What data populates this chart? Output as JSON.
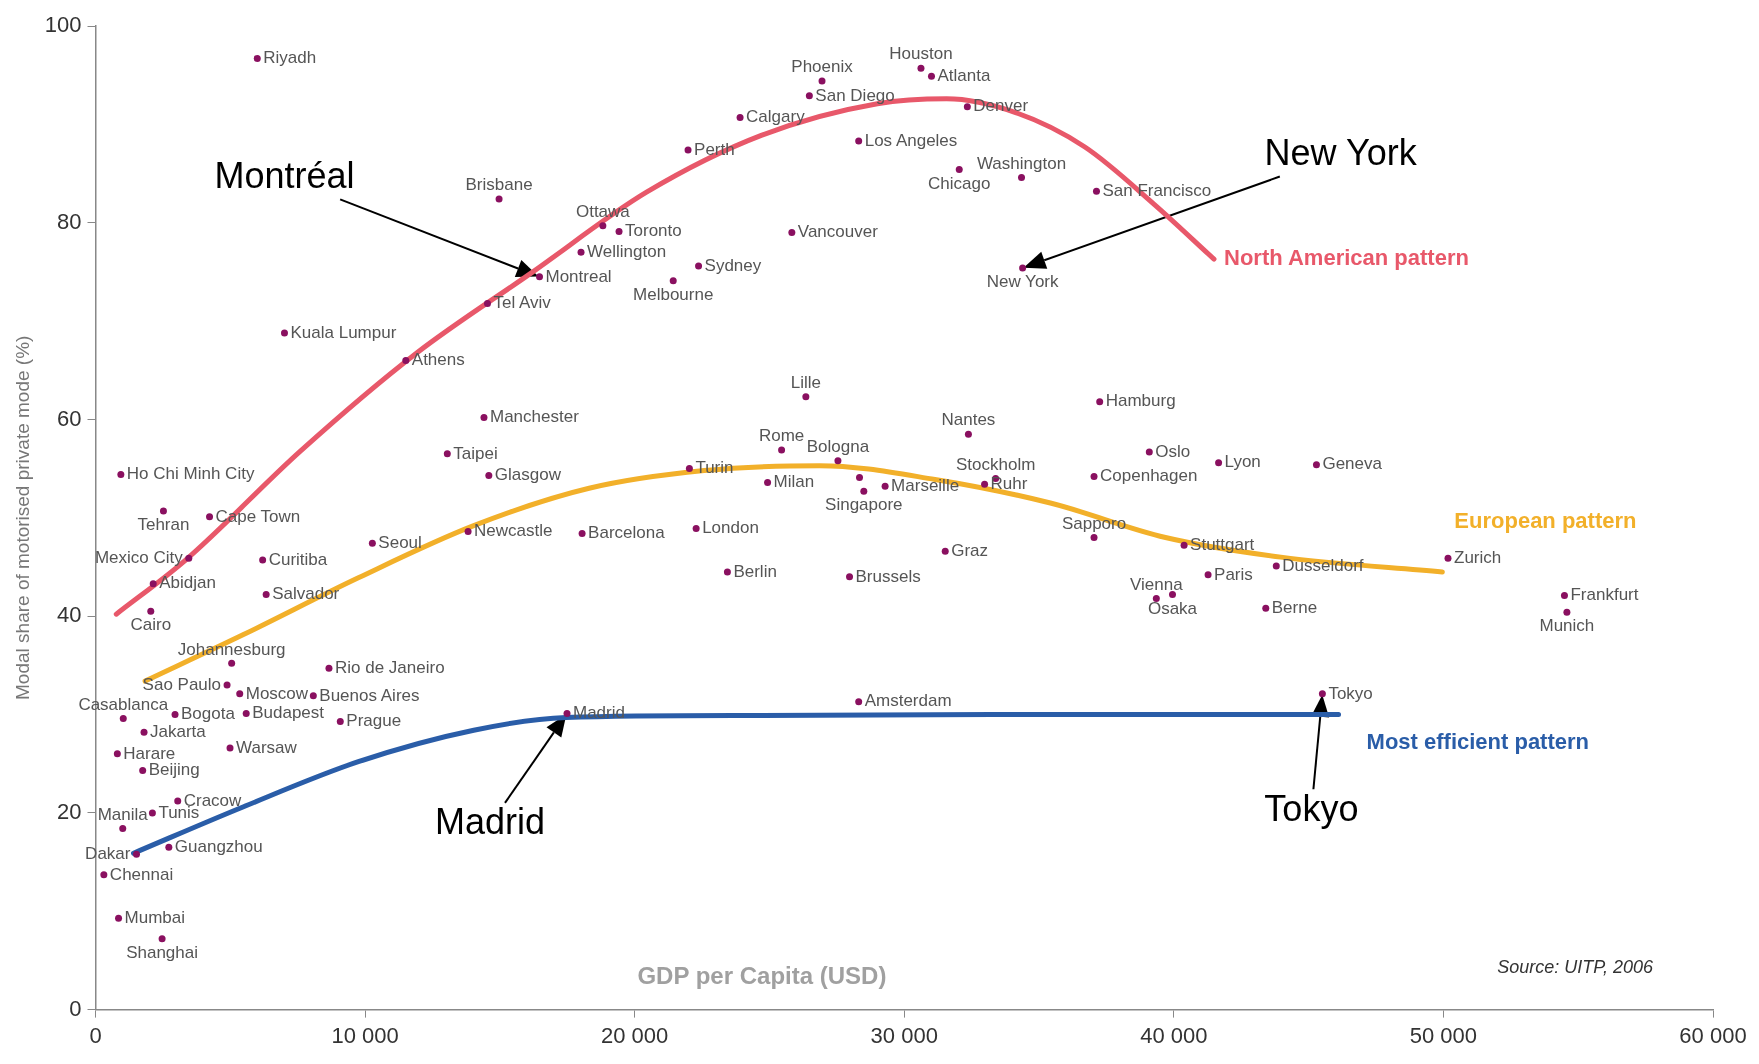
{
  "chart_data": {
    "type": "scatter",
    "xlabel": "GDP per Capita (USD)",
    "ylabel": "Modal share of motorised private mode (%)",
    "xlim": [
      0,
      60000
    ],
    "xticks": [
      0,
      {
        "value": 10000,
        "label": "10 000"
      },
      {
        "value": 20000,
        "label": "20 000"
      },
      {
        "value": 30000,
        "label": "30 000"
      },
      {
        "value": 40000,
        "label": "40 000"
      },
      {
        "value": 50000,
        "label": "50 000"
      },
      {
        "value": 60000,
        "label": "60 000"
      }
    ],
    "ylim": [
      0,
      100
    ],
    "yticks": [
      0,
      20,
      40,
      60,
      80,
      100
    ],
    "marker": "circle",
    "series": [
      {
        "type": "scatter",
        "color": "#8a1060",
        "x": [
          6000,
          26950,
          30620,
          31010,
          26480,
          32340,
          23910,
          21980,
          28310,
          32040,
          34350,
          37130,
          14970,
          18820,
          19420,
          18010,
          25830,
          22370,
          21430,
          16470,
          34390,
          14540,
          7010,
          11510,
          26350,
          37250,
          32380,
          14410,
          25450,
          39090,
          27540,
          41660,
          45290,
          13050,
          940,
          14590,
          22030,
          33390,
          37040,
          24930,
          29290,
          28500,
          32980,
          2520,
          4230,
          37040,
          13820,
          18050,
          22280,
          10270,
          40380,
          3460,
          6200,
          31520,
          50170,
          43800,
          23440,
          27970,
          2140,
          41270,
          6330,
          39350,
          39950,
          54490,
          54580,
          43410,
          2050,
          5050,
          8660,
          4880,
          5350,
          8080,
          1030,
          2950,
          5590,
          9080,
          1800,
          17490,
          28310,
          45510,
          810,
          4990,
          1750,
          1010,
          3050,
          2110,
          1520,
          2720,
          310,
          855,
          2470,
          28340
        ],
        "values": [
          96.7,
          94.4,
          95.7,
          94.9,
          92.9,
          91.8,
          90.7,
          87.4,
          88.3,
          85.4,
          84.6,
          83.2,
          82.4,
          79.7,
          79.1,
          77.0,
          79.0,
          75.6,
          74.1,
          74.5,
          75.4,
          71.8,
          68.8,
          66.0,
          62.3,
          61.8,
          58.5,
          60.2,
          56.9,
          56.7,
          55.8,
          55.6,
          55.4,
          56.5,
          54.4,
          54.3,
          55.0,
          54.0,
          54.2,
          53.6,
          53.2,
          52.7,
          53.4,
          50.7,
          50.1,
          48.0,
          48.6,
          48.4,
          48.9,
          47.4,
          47.2,
          45.9,
          45.7,
          46.6,
          45.9,
          45.1,
          44.5,
          44.0,
          43.3,
          44.2,
          42.2,
          41.8,
          42.2,
          42.1,
          40.4,
          40.8,
          40.5,
          35.2,
          34.7,
          33.0,
          32.1,
          31.9,
          29.6,
          30.0,
          30.1,
          29.3,
          28.2,
          30.1,
          31.3,
          32.1,
          26.0,
          26.6,
          24.3,
          18.4,
          21.2,
          20.0,
          15.8,
          16.5,
          13.7,
          9.3,
          7.2,
          54.1
        ]
      },
      {
        "type": "line",
        "marker": "none",
        "name": "North American pattern",
        "color": "#e8586a",
        "x": [
          770,
          3340,
          7610,
          11890,
          16170,
          20440,
          24720,
          29000,
          31570,
          34130,
          36700,
          39260,
          41490
        ],
        "values": [
          40.2,
          45.7,
          56.8,
          66.7,
          74.9,
          83.1,
          88.9,
          92.1,
          92.6,
          91.2,
          87.7,
          81.9,
          76.3
        ]
      },
      {
        "type": "line",
        "marker": "none",
        "name": "European pattern",
        "color": "#f2b02a",
        "x": [
          1840,
          5470,
          9750,
          14030,
          18310,
          22580,
          26860,
          31140,
          35420,
          39690,
          43970,
          49960
        ],
        "values": [
          33.4,
          38.1,
          43.9,
          49.2,
          53.0,
          54.8,
          55.3,
          53.9,
          51.5,
          48.0,
          46.0,
          44.5
        ]
      },
      {
        "type": "line",
        "marker": "none",
        "name": "Most efficient pattern",
        "color": "#2a5da8",
        "x": [
          1410,
          5470,
          9750,
          14030,
          17450,
          24720,
          33280,
          46110
        ],
        "values": [
          15.9,
          20.6,
          25.2,
          28.4,
          29.7,
          29.9,
          30.0,
          30.0
        ]
      }
    ],
    "annotations": [
      "Source: UITP, 2006",
      {
        "text": "Riyadh",
        "x": 6000,
        "y": 96.7
      },
      {
        "text": "Phoenix",
        "x": 26950,
        "y": 94.4
      },
      {
        "text": "Houston",
        "x": 30620,
        "y": 95.7
      },
      {
        "text": "Atlanta",
        "x": 31010,
        "y": 94.9
      },
      {
        "text": "San Diego",
        "x": 26480,
        "y": 92.9
      },
      {
        "text": "Denver",
        "x": 32340,
        "y": 91.8
      },
      {
        "text": "Calgary",
        "x": 23910,
        "y": 90.7
      },
      {
        "text": "Perth",
        "x": 21980,
        "y": 87.4
      },
      {
        "text": "Los Angeles",
        "x": 28310,
        "y": 88.3
      },
      {
        "text": "Chicago",
        "x": 32040,
        "y": 85.4
      },
      {
        "text": "Washington",
        "x": 34350,
        "y": 84.6
      },
      {
        "text": "San Francisco",
        "x": 37130,
        "y": 83.2
      },
      {
        "text": "Brisbane",
        "x": 14970,
        "y": 82.4
      },
      {
        "text": "Ottawa",
        "x": 18820,
        "y": 79.7
      },
      {
        "text": "Toronto",
        "x": 19420,
        "y": 79.1
      },
      {
        "text": "Wellington",
        "x": 18010,
        "y": 77.0
      },
      {
        "text": "Vancouver",
        "x": 25830,
        "y": 79.0
      },
      {
        "text": "Sydney",
        "x": 22370,
        "y": 75.6
      },
      {
        "text": "Melbourne",
        "x": 21430,
        "y": 74.1
      },
      {
        "text": "Montreal",
        "x": 16470,
        "y": 74.5
      },
      {
        "text": "New York",
        "x": 34390,
        "y": 75.4
      },
      {
        "text": "Tel Aviv",
        "x": 14540,
        "y": 71.8
      },
      {
        "text": "Kuala Lumpur",
        "x": 7010,
        "y": 68.8
      },
      {
        "text": "Athens",
        "x": 11510,
        "y": 66.0
      },
      {
        "text": "Lille",
        "x": 26350,
        "y": 62.3
      },
      {
        "text": "Hamburg",
        "x": 37250,
        "y": 61.8
      },
      {
        "text": "Nantes",
        "x": 32380,
        "y": 58.5
      },
      {
        "text": "Manchester",
        "x": 14410,
        "y": 60.2
      },
      {
        "text": "Rome",
        "x": 25450,
        "y": 56.9
      },
      {
        "text": "Oslo",
        "x": 39090,
        "y": 56.7
      },
      {
        "text": "Bologna",
        "x": 27540,
        "y": 55.8
      },
      {
        "text": "Lyon",
        "x": 41660,
        "y": 55.6
      },
      {
        "text": "Geneva",
        "x": 45290,
        "y": 55.4
      },
      {
        "text": "Taipei",
        "x": 13050,
        "y": 56.5
      },
      {
        "text": "Ho Chi Minh City",
        "x": 940,
        "y": 54.4
      },
      {
        "text": "Glasgow",
        "x": 14590,
        "y": 54.3
      },
      {
        "text": "Turin",
        "x": 22030,
        "y": 55.0
      },
      {
        "text": "Stockholm",
        "x": 33390,
        "y": 54.0
      },
      {
        "text": "Copenhagen",
        "x": 37040,
        "y": 54.2
      },
      {
        "text": "Milan",
        "x": 24930,
        "y": 53.6
      },
      {
        "text": "Marseille",
        "x": 29290,
        "y": 53.2
      },
      {
        "text": "Singapore",
        "x": 28500,
        "y": 52.7
      },
      {
        "text": "Ruhr",
        "x": 32980,
        "y": 53.4
      },
      {
        "text": "Tehran",
        "x": 2520,
        "y": 50.7
      },
      {
        "text": "Cape Town",
        "x": 4230,
        "y": 50.1
      },
      {
        "text": "Sapporo",
        "x": 37040,
        "y": 48.0
      },
      {
        "text": "Newcastle",
        "x": 13820,
        "y": 48.6
      },
      {
        "text": "Barcelona",
        "x": 18050,
        "y": 48.4
      },
      {
        "text": "London",
        "x": 22280,
        "y": 48.9
      },
      {
        "text": "Seoul",
        "x": 10270,
        "y": 47.4
      },
      {
        "text": "Stuttgart",
        "x": 40380,
        "y": 47.2
      },
      {
        "text": "Mexico City",
        "x": 3460,
        "y": 45.9
      },
      {
        "text": "Curitiba",
        "x": 6200,
        "y": 45.7
      },
      {
        "text": "Graz",
        "x": 31520,
        "y": 46.6
      },
      {
        "text": "Zurich",
        "x": 50170,
        "y": 45.9
      },
      {
        "text": "Dusseldorf",
        "x": 43800,
        "y": 45.1
      },
      {
        "text": "Berlin",
        "x": 23440,
        "y": 44.5
      },
      {
        "text": "Brussels",
        "x": 27970,
        "y": 44.0
      },
      {
        "text": "Abidjan",
        "x": 2140,
        "y": 43.3
      },
      {
        "text": "Paris",
        "x": 41270,
        "y": 44.2
      },
      {
        "text": "Salvador",
        "x": 6330,
        "y": 42.2
      },
      {
        "text": "Vienna",
        "x": 39350,
        "y": 41.8
      },
      {
        "text": "Osaka",
        "x": 39950,
        "y": 42.2
      },
      {
        "text": "Frankfurt",
        "x": 54490,
        "y": 42.1
      },
      {
        "text": "Munich",
        "x": 54580,
        "y": 40.4
      },
      {
        "text": "Berne",
        "x": 43410,
        "y": 40.8
      },
      {
        "text": "Cairo",
        "x": 2050,
        "y": 40.5
      },
      {
        "text": "Johannesburg",
        "x": 5050,
        "y": 35.2
      },
      {
        "text": "Rio de Janeiro",
        "x": 8660,
        "y": 34.7
      },
      {
        "text": "Sao Paulo",
        "x": 4880,
        "y": 33.0
      },
      {
        "text": "Moscow",
        "x": 5350,
        "y": 32.1
      },
      {
        "text": "Buenos Aires",
        "x": 8080,
        "y": 31.9
      },
      {
        "text": "Casablanca",
        "x": 1030,
        "y": 29.6
      },
      {
        "text": "Bogota",
        "x": 2950,
        "y": 30.0
      },
      {
        "text": "Budapest",
        "x": 5590,
        "y": 30.1
      },
      {
        "text": "Prague",
        "x": 9080,
        "y": 29.3
      },
      {
        "text": "Jakarta",
        "x": 1800,
        "y": 28.2
      },
      {
        "text": "Madrid",
        "x": 17490,
        "y": 30.1
      },
      {
        "text": "Amsterdam",
        "x": 28310,
        "y": 31.3
      },
      {
        "text": "Tokyo",
        "x": 45510,
        "y": 32.1
      },
      {
        "text": "Harare",
        "x": 810,
        "y": 26.0
      },
      {
        "text": "Warsaw",
        "x": 4990,
        "y": 26.6
      },
      {
        "text": "Beijing",
        "x": 1750,
        "y": 24.3
      },
      {
        "text": "Manila",
        "x": 1010,
        "y": 18.4
      },
      {
        "text": "Cracow",
        "x": 3050,
        "y": 21.2
      },
      {
        "text": "Tunis",
        "x": 2110,
        "y": 20.0
      },
      {
        "text": "Dakar",
        "x": 1520,
        "y": 15.8
      },
      {
        "text": "Guangzhou",
        "x": 2720,
        "y": 16.5
      },
      {
        "text": "Chennai",
        "x": 310,
        "y": 13.7
      },
      {
        "text": "Mumbai",
        "x": 855,
        "y": 9.3
      },
      {
        "text": "Shanghai",
        "x": 2470,
        "y": 7.2
      },
      "Montréal",
      "New York",
      {
        "text": "Madrid",
        "x": 17490,
        "y": 30.1
      },
      {
        "text": "Tokyo",
        "x": 45510,
        "y": 32.1
      }
    ]
  }
}
